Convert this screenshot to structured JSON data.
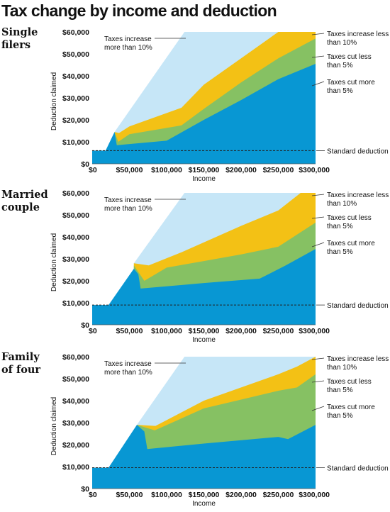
{
  "title": "Tax change by income and deduction",
  "colors": {
    "taxes_increase_more_than_10": "#c6e6f7",
    "taxes_increase_less_than_10": "#f3c115",
    "taxes_cut_less_than_5": "#86c163",
    "taxes_cut_more_than_5": "#0897d3",
    "standard_deduction_line": "#222222",
    "leader": "#333333"
  },
  "region_labels": {
    "increase_more": [
      "Taxes increase",
      "more than 10%"
    ],
    "increase_less": [
      "Taxes increase less",
      "than 10%"
    ],
    "cut_less": [
      "Taxes cut less",
      "than 5%"
    ],
    "cut_more": [
      "Taxes cut more",
      "than 5%"
    ],
    "standard": [
      "Standard deduction"
    ]
  },
  "chart_data": [
    {
      "type": "area",
      "panel_title": [
        "Single",
        "filers"
      ],
      "xlabel": "Income",
      "ylabel": "Deduction claimed",
      "xlim": [
        0,
        300000
      ],
      "ylim": [
        0,
        60000
      ],
      "x_ticks": [
        0,
        50000,
        100000,
        150000,
        200000,
        250000,
        300000
      ],
      "x_tick_labels": [
        "$0",
        "$50,000",
        "$100,000",
        "$150,000",
        "$200,000",
        "$250,000",
        "$300,000"
      ],
      "y_ticks": [
        0,
        10000,
        20000,
        30000,
        40000,
        50000,
        60000
      ],
      "y_tick_labels": [
        "$0",
        "$10,000",
        "$20,000",
        "$30,000",
        "$40,000",
        "$50,000",
        "$60,000"
      ],
      "standard_deduction": 6000,
      "boundaries": {
        "cut_more_top": [
          [
            0,
            6000
          ],
          [
            18000,
            6000
          ],
          [
            30000,
            14500
          ],
          [
            33000,
            8500
          ],
          [
            100000,
            10500
          ],
          [
            150000,
            20000
          ],
          [
            200000,
            29000
          ],
          [
            250000,
            38500
          ],
          [
            300000,
            45500
          ]
        ],
        "cut_less_top": [
          [
            30000,
            14500
          ],
          [
            35000,
            10000
          ],
          [
            50000,
            13500
          ],
          [
            120000,
            17500
          ],
          [
            150000,
            25000
          ],
          [
            200000,
            37000
          ],
          [
            250000,
            48000
          ],
          [
            300000,
            57000
          ]
        ],
        "increase_less_top": [
          [
            30000,
            14500
          ],
          [
            36000,
            14000
          ],
          [
            50000,
            17000
          ],
          [
            120000,
            25500
          ],
          [
            150000,
            36000
          ],
          [
            200000,
            48000
          ],
          [
            250000,
            60000
          ],
          [
            300000,
            60000
          ]
        ],
        "increase_more_top": [
          [
            30000,
            14500
          ],
          [
            124000,
            60000
          ],
          [
            300000,
            60000
          ]
        ]
      }
    },
    {
      "type": "area",
      "panel_title": [
        "Married",
        "couple"
      ],
      "xlabel": "Income",
      "ylabel": "Deduction claimed",
      "xlim": [
        0,
        300000
      ],
      "ylim": [
        0,
        60000
      ],
      "x_ticks": [
        0,
        50000,
        100000,
        150000,
        200000,
        250000,
        300000
      ],
      "x_tick_labels": [
        "$0",
        "$50,000",
        "$100,000",
        "$150,000",
        "$200,000",
        "$250,000",
        "$300,000"
      ],
      "y_ticks": [
        0,
        10000,
        20000,
        30000,
        40000,
        50000,
        60000
      ],
      "y_tick_labels": [
        "$0",
        "$10,000",
        "$20,000",
        "$30,000",
        "$40,000",
        "$50,000",
        "$60,000"
      ],
      "standard_deduction": 9000,
      "boundaries": {
        "cut_more_top": [
          [
            0,
            9000
          ],
          [
            22000,
            9000
          ],
          [
            56000,
            25500
          ],
          [
            62000,
            23000
          ],
          [
            65000,
            16500
          ],
          [
            100000,
            17500
          ],
          [
            150000,
            19000
          ],
          [
            225000,
            21000
          ],
          [
            260000,
            27000
          ],
          [
            300000,
            34500
          ]
        ],
        "cut_less_top": [
          [
            56000,
            27000
          ],
          [
            70000,
            20000
          ],
          [
            100000,
            26000
          ],
          [
            150000,
            29000
          ],
          [
            200000,
            32000
          ],
          [
            250000,
            35500
          ],
          [
            300000,
            46500
          ]
        ],
        "increase_less_top": [
          [
            56000,
            28000
          ],
          [
            76000,
            27000
          ],
          [
            120000,
            33000
          ],
          [
            160000,
            39000
          ],
          [
            200000,
            45000
          ],
          [
            250000,
            52000
          ],
          [
            280000,
            60000
          ],
          [
            300000,
            60000
          ]
        ],
        "increase_more_top": [
          [
            56000,
            28000
          ],
          [
            124000,
            60000
          ],
          [
            300000,
            60000
          ]
        ]
      }
    },
    {
      "type": "area",
      "panel_title": [
        "Family",
        "of four"
      ],
      "xlabel": "Income",
      "ylabel": "Deduction claimed",
      "xlim": [
        0,
        300000
      ],
      "ylim": [
        0,
        60000
      ],
      "x_ticks": [
        0,
        50000,
        100000,
        150000,
        200000,
        250000,
        300000
      ],
      "x_tick_labels": [
        "$0",
        "$50,000",
        "$100,000",
        "$150,000",
        "$200,000",
        "$250,000",
        "$300,000"
      ],
      "y_ticks": [
        0,
        10000,
        20000,
        30000,
        40000,
        50000,
        60000
      ],
      "y_tick_labels": [
        "$0",
        "$10,000",
        "$20,000",
        "$30,000",
        "$40,000",
        "$50,000",
        "$60,000"
      ],
      "standard_deduction": 9500,
      "boundaries": {
        "cut_more_top": [
          [
            0,
            9500
          ],
          [
            22000,
            9500
          ],
          [
            60000,
            29000
          ],
          [
            70000,
            26000
          ],
          [
            74000,
            18000
          ],
          [
            150000,
            20500
          ],
          [
            250000,
            23500
          ],
          [
            263000,
            22500
          ],
          [
            300000,
            29000
          ]
        ],
        "cut_less_top": [
          [
            60000,
            29000
          ],
          [
            84000,
            26500
          ],
          [
            150000,
            36500
          ],
          [
            200000,
            40500
          ],
          [
            250000,
            44500
          ],
          [
            275000,
            46000
          ],
          [
            300000,
            52000
          ]
        ],
        "increase_less_top": [
          [
            60000,
            29000
          ],
          [
            85000,
            28500
          ],
          [
            150000,
            40000
          ],
          [
            200000,
            46000
          ],
          [
            250000,
            52000
          ],
          [
            275000,
            55500
          ],
          [
            300000,
            60000
          ]
        ],
        "increase_more_top": [
          [
            60000,
            29000
          ],
          [
            124000,
            60000
          ],
          [
            300000,
            60000
          ]
        ]
      }
    }
  ]
}
